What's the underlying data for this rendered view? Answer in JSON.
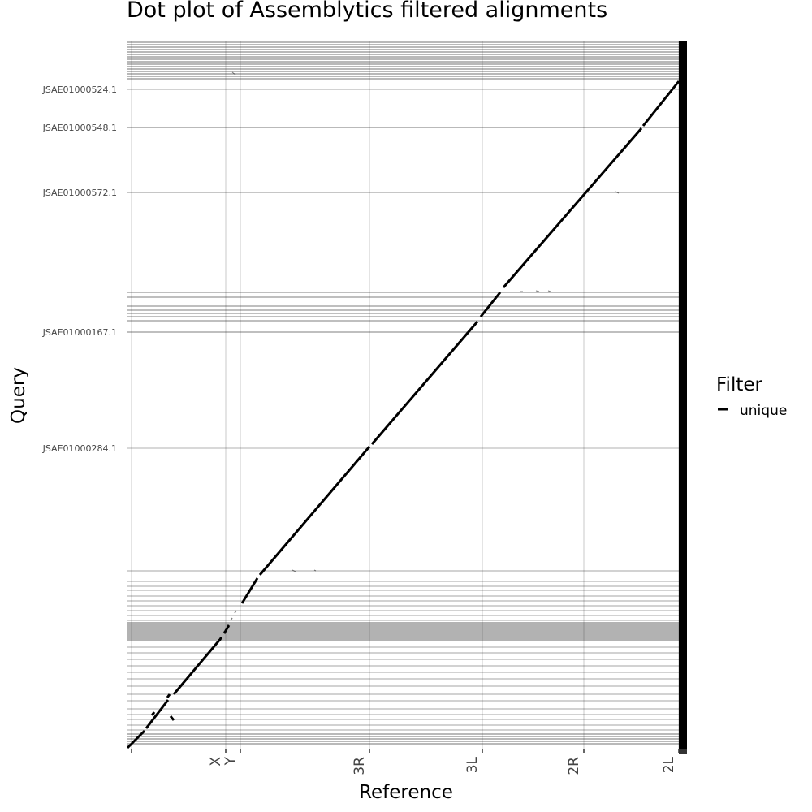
{
  "chart_data": {
    "type": "scatter",
    "title": "Dot plot of Assemblytics filtered alignments",
    "xlabel": "Reference",
    "ylabel": "Query",
    "grid": true,
    "legend_placement": "right",
    "legend": {
      "title": "Filter",
      "entries": [
        "unique"
      ]
    },
    "x_tick_labels": [
      "X",
      "Y",
      "3R",
      "3L",
      "2R",
      "2L"
    ],
    "y_tick_labels": [
      "JSAE01000524.1",
      "JSAE01000548.1",
      "JSAE01000572.1",
      "JSAE01000167.1",
      "JSAE01000284.1"
    ],
    "series": [
      {
        "name": "unique",
        "color": "#000000",
        "description_points": "main diagonal of unique alignments"
      }
    ]
  }
}
